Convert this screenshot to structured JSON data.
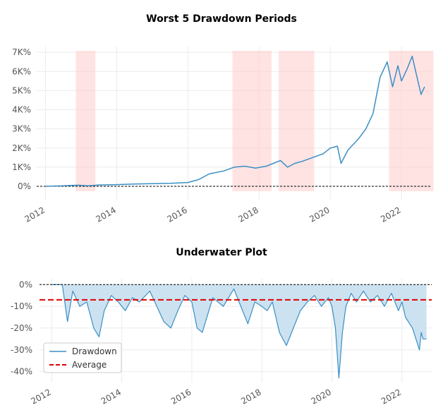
{
  "chart_data": [
    {
      "type": "line",
      "title": "Worst 5 Drawdown Periods",
      "xlabel": "",
      "ylabel": "",
      "x_range": [
        2011.75,
        2022.85
      ],
      "ylim": [
        -700,
        7300
      ],
      "x_ticks": [
        2012,
        2014,
        2016,
        2018,
        2020,
        2022
      ],
      "x_tick_labels": [
        "2012",
        "2014",
        "2016",
        "2018",
        "2020",
        "2022"
      ],
      "y_ticks": [
        0,
        1000,
        2000,
        3000,
        4000,
        5000,
        6000,
        7000
      ],
      "y_tick_labels": [
        "0%",
        "1K%",
        "2K%",
        "3K%",
        "4K%",
        "5K%",
        "6K%",
        "7K%"
      ],
      "grid": true,
      "zero_line": true,
      "line_color": "#3a8fc3",
      "shade_color": "#ffcccc",
      "series": [
        {
          "x": [
            2012.0,
            2012.5,
            2012.9,
            2013.2,
            2013.5,
            2014.0,
            2014.5,
            2015.0,
            2015.5,
            2016.0,
            2016.3,
            2016.6,
            2017.0,
            2017.3,
            2017.6,
            2017.9,
            2018.2,
            2018.4,
            2018.6,
            2018.8,
            2019.0,
            2019.2,
            2019.5,
            2019.8,
            2020.0,
            2020.2,
            2020.3,
            2020.5,
            2020.8,
            2021.0,
            2021.2,
            2021.4,
            2021.6,
            2021.75,
            2021.9,
            2022.0,
            2022.15,
            2022.3,
            2022.45,
            2022.55,
            2022.65
          ],
          "y": [
            0,
            30,
            60,
            30,
            70,
            90,
            120,
            140,
            160,
            200,
            350,
            650,
            800,
            1000,
            1050,
            950,
            1050,
            1200,
            1350,
            1000,
            1200,
            1300,
            1500,
            1700,
            2000,
            2100,
            1200,
            1900,
            2500,
            3000,
            3800,
            5700,
            6500,
            5200,
            6300,
            5500,
            6100,
            6800,
            5600,
            4800,
            5200
          ]
        }
      ],
      "shaded_periods": [
        [
          2012.85,
          2013.4
        ],
        [
          2017.25,
          2018.35
        ],
        [
          2018.55,
          2019.55
        ],
        [
          2021.65,
          2022.9
        ]
      ]
    },
    {
      "type": "area",
      "title": "Underwater Plot",
      "xlabel": "",
      "ylabel": "",
      "x_range": [
        2011.65,
        2022.85
      ],
      "ylim": [
        -45,
        3
      ],
      "x_ticks": [
        2012,
        2014,
        2016,
        2018,
        2020,
        2022
      ],
      "x_tick_labels": [
        "2012",
        "2014",
        "2016",
        "2018",
        "2020",
        "2022"
      ],
      "y_ticks": [
        0,
        -10,
        -20,
        -30,
        -40
      ],
      "y_tick_labels": [
        "0%",
        "-10%",
        "-20%",
        "-30%",
        "-40%"
      ],
      "grid": true,
      "legend_position": "bottom-left",
      "line_color": "#3a8fc3",
      "fill_color": "#c6dff0",
      "average_color": "#e00000",
      "series": [
        {
          "name": "Drawdown",
          "x": [
            2012.0,
            2012.3,
            2012.45,
            2012.6,
            2012.8,
            2013.0,
            2013.2,
            2013.35,
            2013.5,
            2013.7,
            2013.9,
            2014.1,
            2014.3,
            2014.5,
            2014.8,
            2015.0,
            2015.2,
            2015.4,
            2015.6,
            2015.8,
            2016.0,
            2016.15,
            2016.3,
            2016.6,
            2016.9,
            2017.2,
            2017.4,
            2017.6,
            2017.8,
            2018.0,
            2018.15,
            2018.3,
            2018.5,
            2018.7,
            2018.9,
            2019.1,
            2019.3,
            2019.5,
            2019.7,
            2019.9,
            2020.0,
            2020.1,
            2020.2,
            2020.3,
            2020.4,
            2020.55,
            2020.7,
            2020.9,
            2021.1,
            2021.3,
            2021.5,
            2021.7,
            2021.9,
            2022.0,
            2022.1,
            2022.3,
            2022.5,
            2022.55,
            2022.6,
            2022.7
          ],
          "y": [
            0,
            0,
            -17,
            -3,
            -10,
            -8,
            -20,
            -24,
            -12,
            -5,
            -8,
            -12,
            -6,
            -8,
            -3,
            -10,
            -17,
            -20,
            -12,
            -5,
            -8,
            -20,
            -22,
            -6,
            -10,
            -2,
            -10,
            -18,
            -8,
            -10,
            -12,
            -8,
            -22,
            -28,
            -20,
            -12,
            -8,
            -5,
            -10,
            -6,
            -10,
            -20,
            -43,
            -22,
            -10,
            -4,
            -8,
            -3,
            -8,
            -5,
            -10,
            -4,
            -12,
            -8,
            -15,
            -20,
            -30,
            -22,
            -25,
            -25
          ]
        },
        {
          "name": "Average",
          "y": [
            -7,
            -7
          ]
        }
      ]
    }
  ]
}
